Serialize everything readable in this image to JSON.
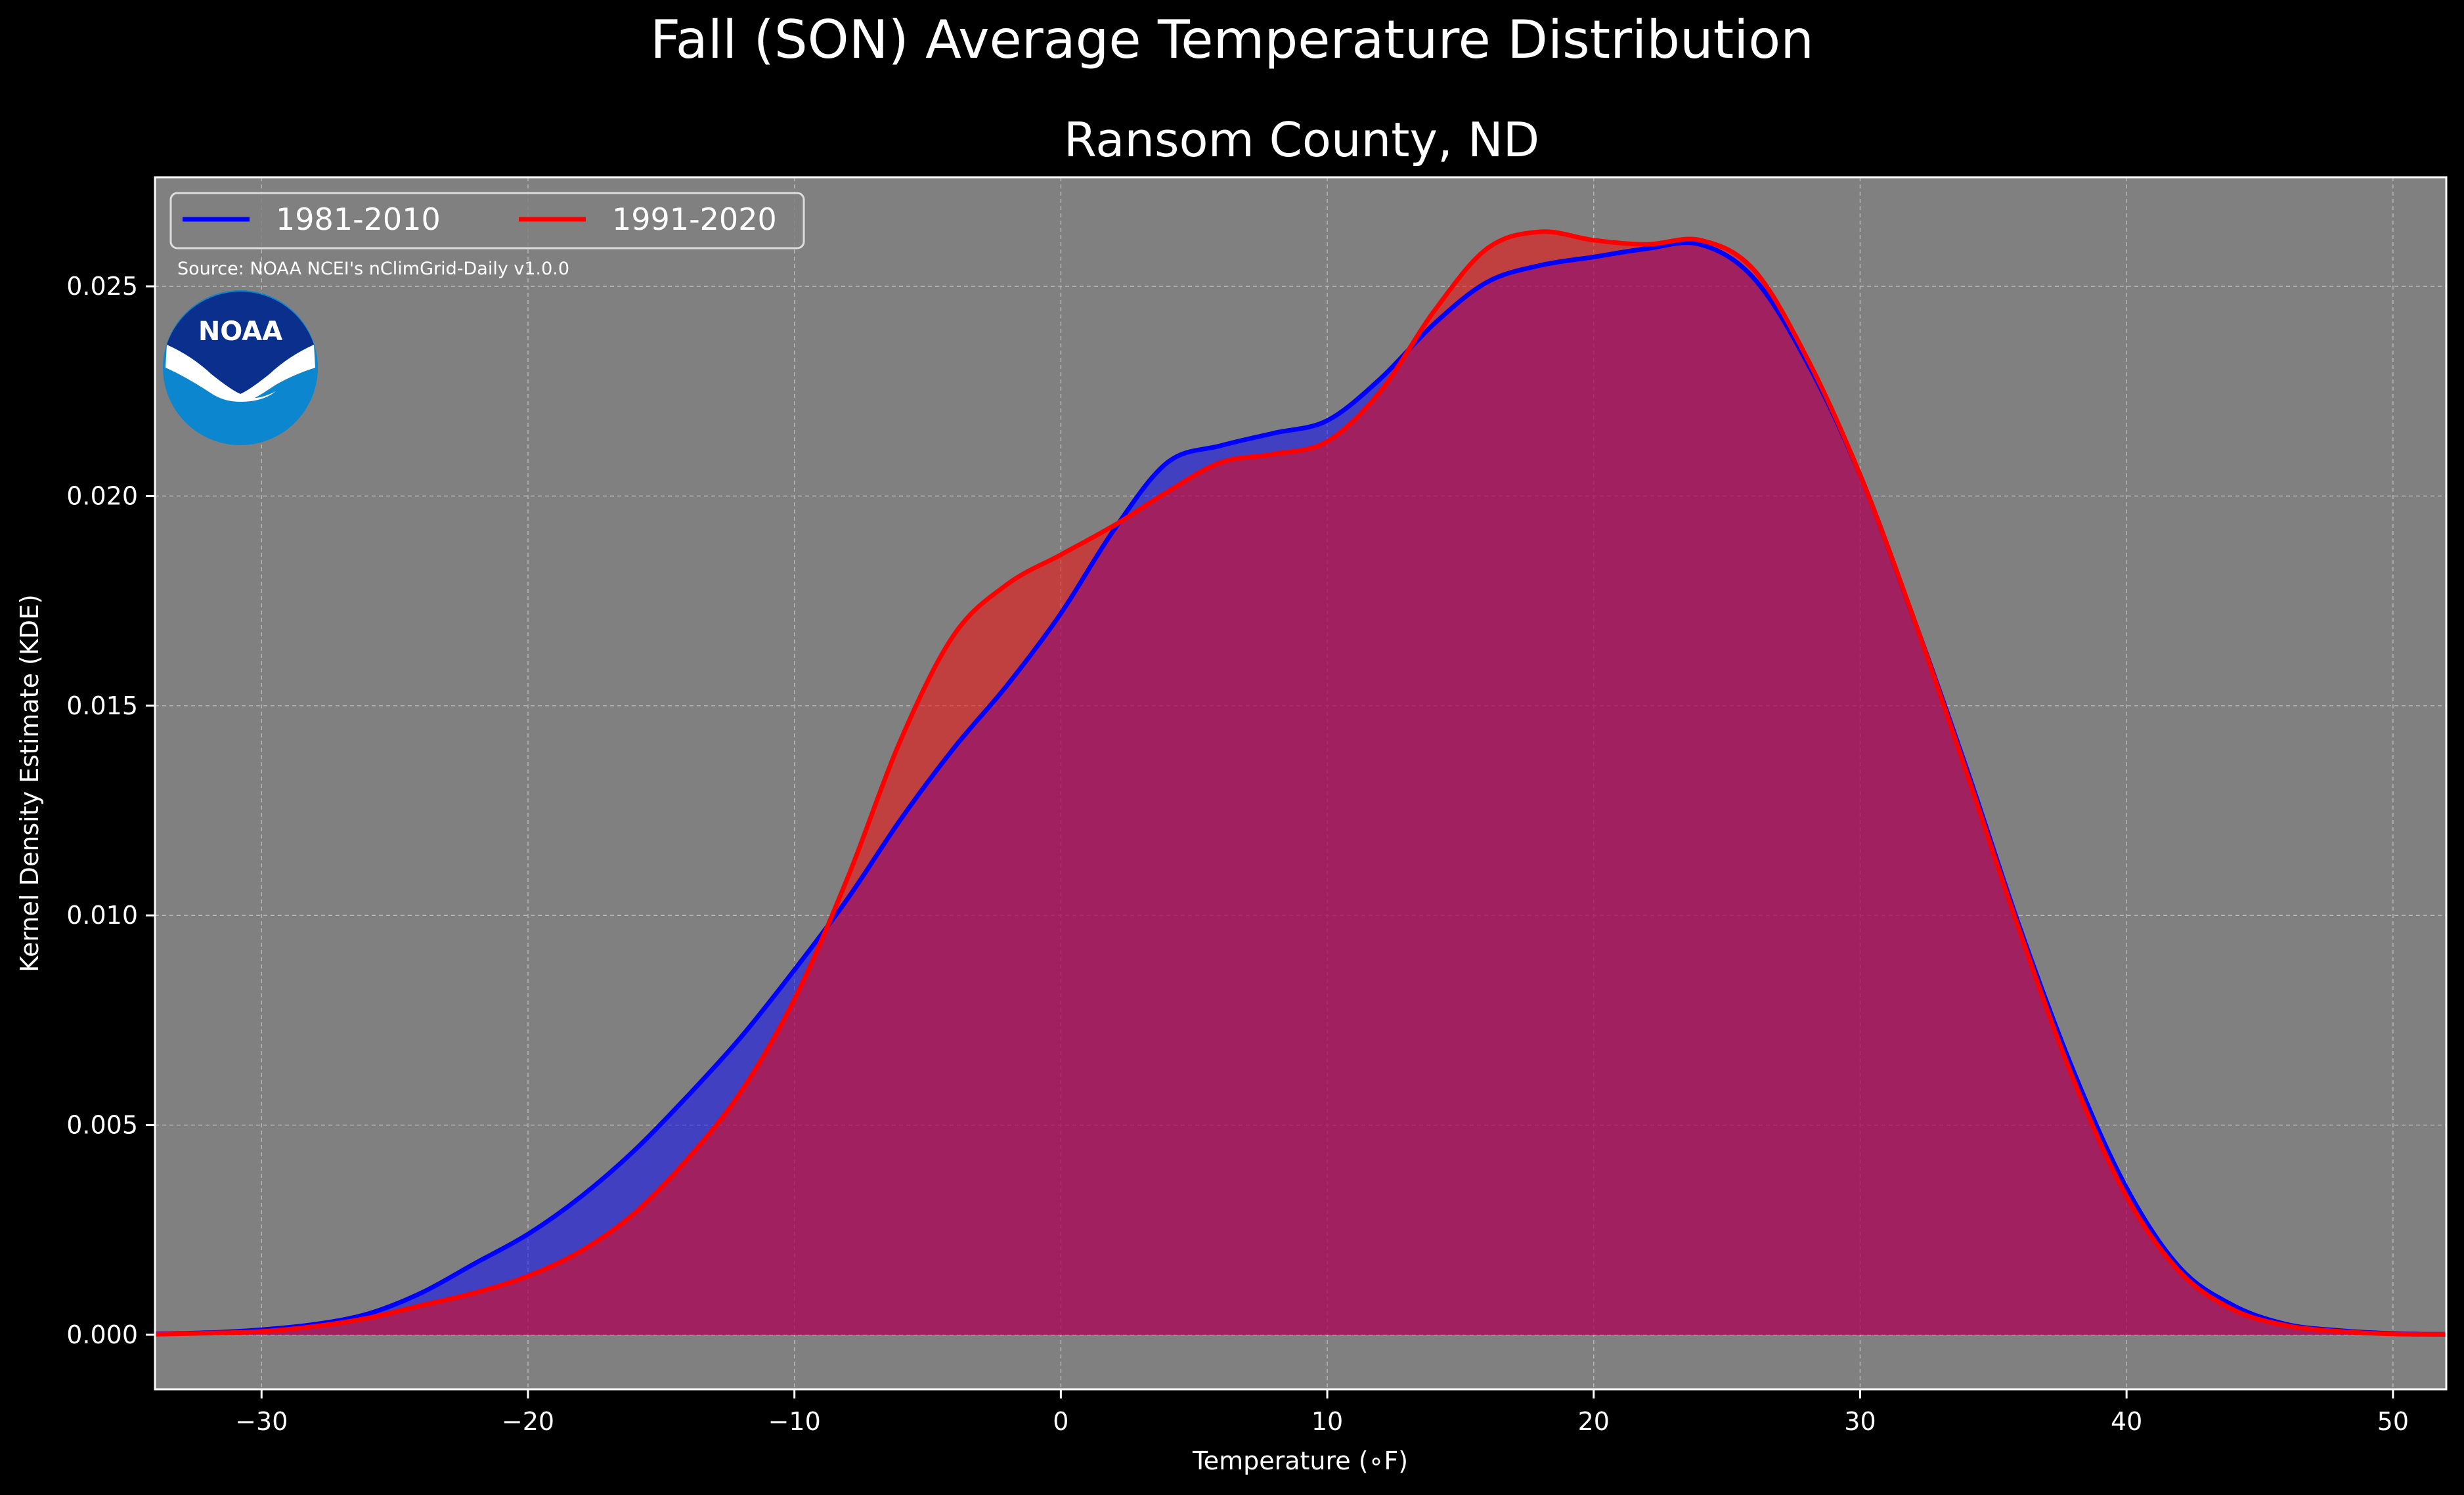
{
  "suptitle": "Fall (SON) Average Temperature Distribution",
  "chart_data": {
    "type": "area",
    "title": "Ransom County, ND",
    "xlabel": "Temperature ($^\\circ$F)",
    "xlabel_display": "Temperature (∘F)",
    "ylabel": "Kernel Density Estimate (KDE)",
    "xlim": [
      -34,
      52
    ],
    "ylim": [
      -0.0013,
      0.0276
    ],
    "xticks": [
      -30,
      -20,
      -10,
      0,
      10,
      20,
      30,
      40,
      50
    ],
    "xtick_labels": [
      "−30",
      "−20",
      "−10",
      "0",
      "10",
      "20",
      "30",
      "40",
      "50"
    ],
    "yticks": [
      0.0,
      0.005,
      0.01,
      0.015,
      0.02,
      0.025
    ],
    "ytick_labels": [
      "0.000",
      "0.005",
      "0.010",
      "0.015",
      "0.020",
      "0.025"
    ],
    "grid": true,
    "legend_placement": "upper-left",
    "legend_ncol": 2,
    "background_color": "#000000",
    "axes_color": "#808080",
    "series": [
      {
        "name": "1981-2010",
        "color": "#0000ff",
        "fill_color": "#0000ff",
        "x": [
          -34,
          -32,
          -30,
          -28,
          -26,
          -24,
          -22,
          -20,
          -18,
          -16,
          -14,
          -12,
          -10,
          -8,
          -6,
          -4,
          -2,
          0,
          2,
          4,
          6,
          8,
          10,
          12,
          14,
          16,
          18,
          20,
          22,
          24,
          26,
          28,
          30,
          32,
          34,
          36,
          38,
          40,
          42,
          44,
          46,
          48,
          50,
          52
        ],
        "y": [
          2e-05,
          5e-05,
          0.00012,
          0.00025,
          0.0005,
          0.001,
          0.0017,
          0.0024,
          0.0033,
          0.0044,
          0.0057,
          0.0071,
          0.0087,
          0.0104,
          0.0123,
          0.014,
          0.0155,
          0.0172,
          0.0192,
          0.0208,
          0.0212,
          0.0215,
          0.0218,
          0.0228,
          0.0241,
          0.0251,
          0.0255,
          0.0257,
          0.0259,
          0.026,
          0.0252,
          0.0232,
          0.0205,
          0.0171,
          0.0135,
          0.0097,
          0.0063,
          0.0035,
          0.0016,
          0.0007,
          0.00025,
          0.0001,
          3e-05,
          1e-05
        ]
      },
      {
        "name": "1991-2020",
        "color": "#ff0000",
        "fill_color": "#ff0000",
        "x": [
          -34,
          -32,
          -30,
          -28,
          -26,
          -24,
          -22,
          -20,
          -18,
          -16,
          -14,
          -12,
          -10,
          -8,
          -6,
          -4,
          -2,
          0,
          2,
          4,
          6,
          8,
          10,
          12,
          14,
          16,
          18,
          20,
          22,
          24,
          26,
          28,
          30,
          32,
          34,
          36,
          38,
          40,
          42,
          44,
          46,
          48,
          50,
          52
        ],
        "y": [
          1e-05,
          4e-05,
          8e-05,
          0.0002,
          0.0004,
          0.0007,
          0.001,
          0.0014,
          0.002,
          0.0029,
          0.0042,
          0.0058,
          0.008,
          0.0109,
          0.0142,
          0.0167,
          0.0179,
          0.0186,
          0.0193,
          0.0201,
          0.0208,
          0.021,
          0.0213,
          0.0225,
          0.0244,
          0.0259,
          0.0263,
          0.0261,
          0.026,
          0.0261,
          0.0254,
          0.0233,
          0.0205,
          0.0171,
          0.0134,
          0.0096,
          0.0061,
          0.0033,
          0.0015,
          0.0006,
          0.00022,
          8e-05,
          2e-05,
          1e-05
        ]
      }
    ],
    "annotations": [
      {
        "text": "Source: NOAA NCEI's nClimGrid-Daily v1.0.0"
      }
    ]
  },
  "logo": {
    "text": "NOAA",
    "icon": "noaa-logo-icon",
    "colors": {
      "outer": "#0d86d0",
      "inner": "#0b2f8c",
      "bird": "#ffffff"
    }
  }
}
